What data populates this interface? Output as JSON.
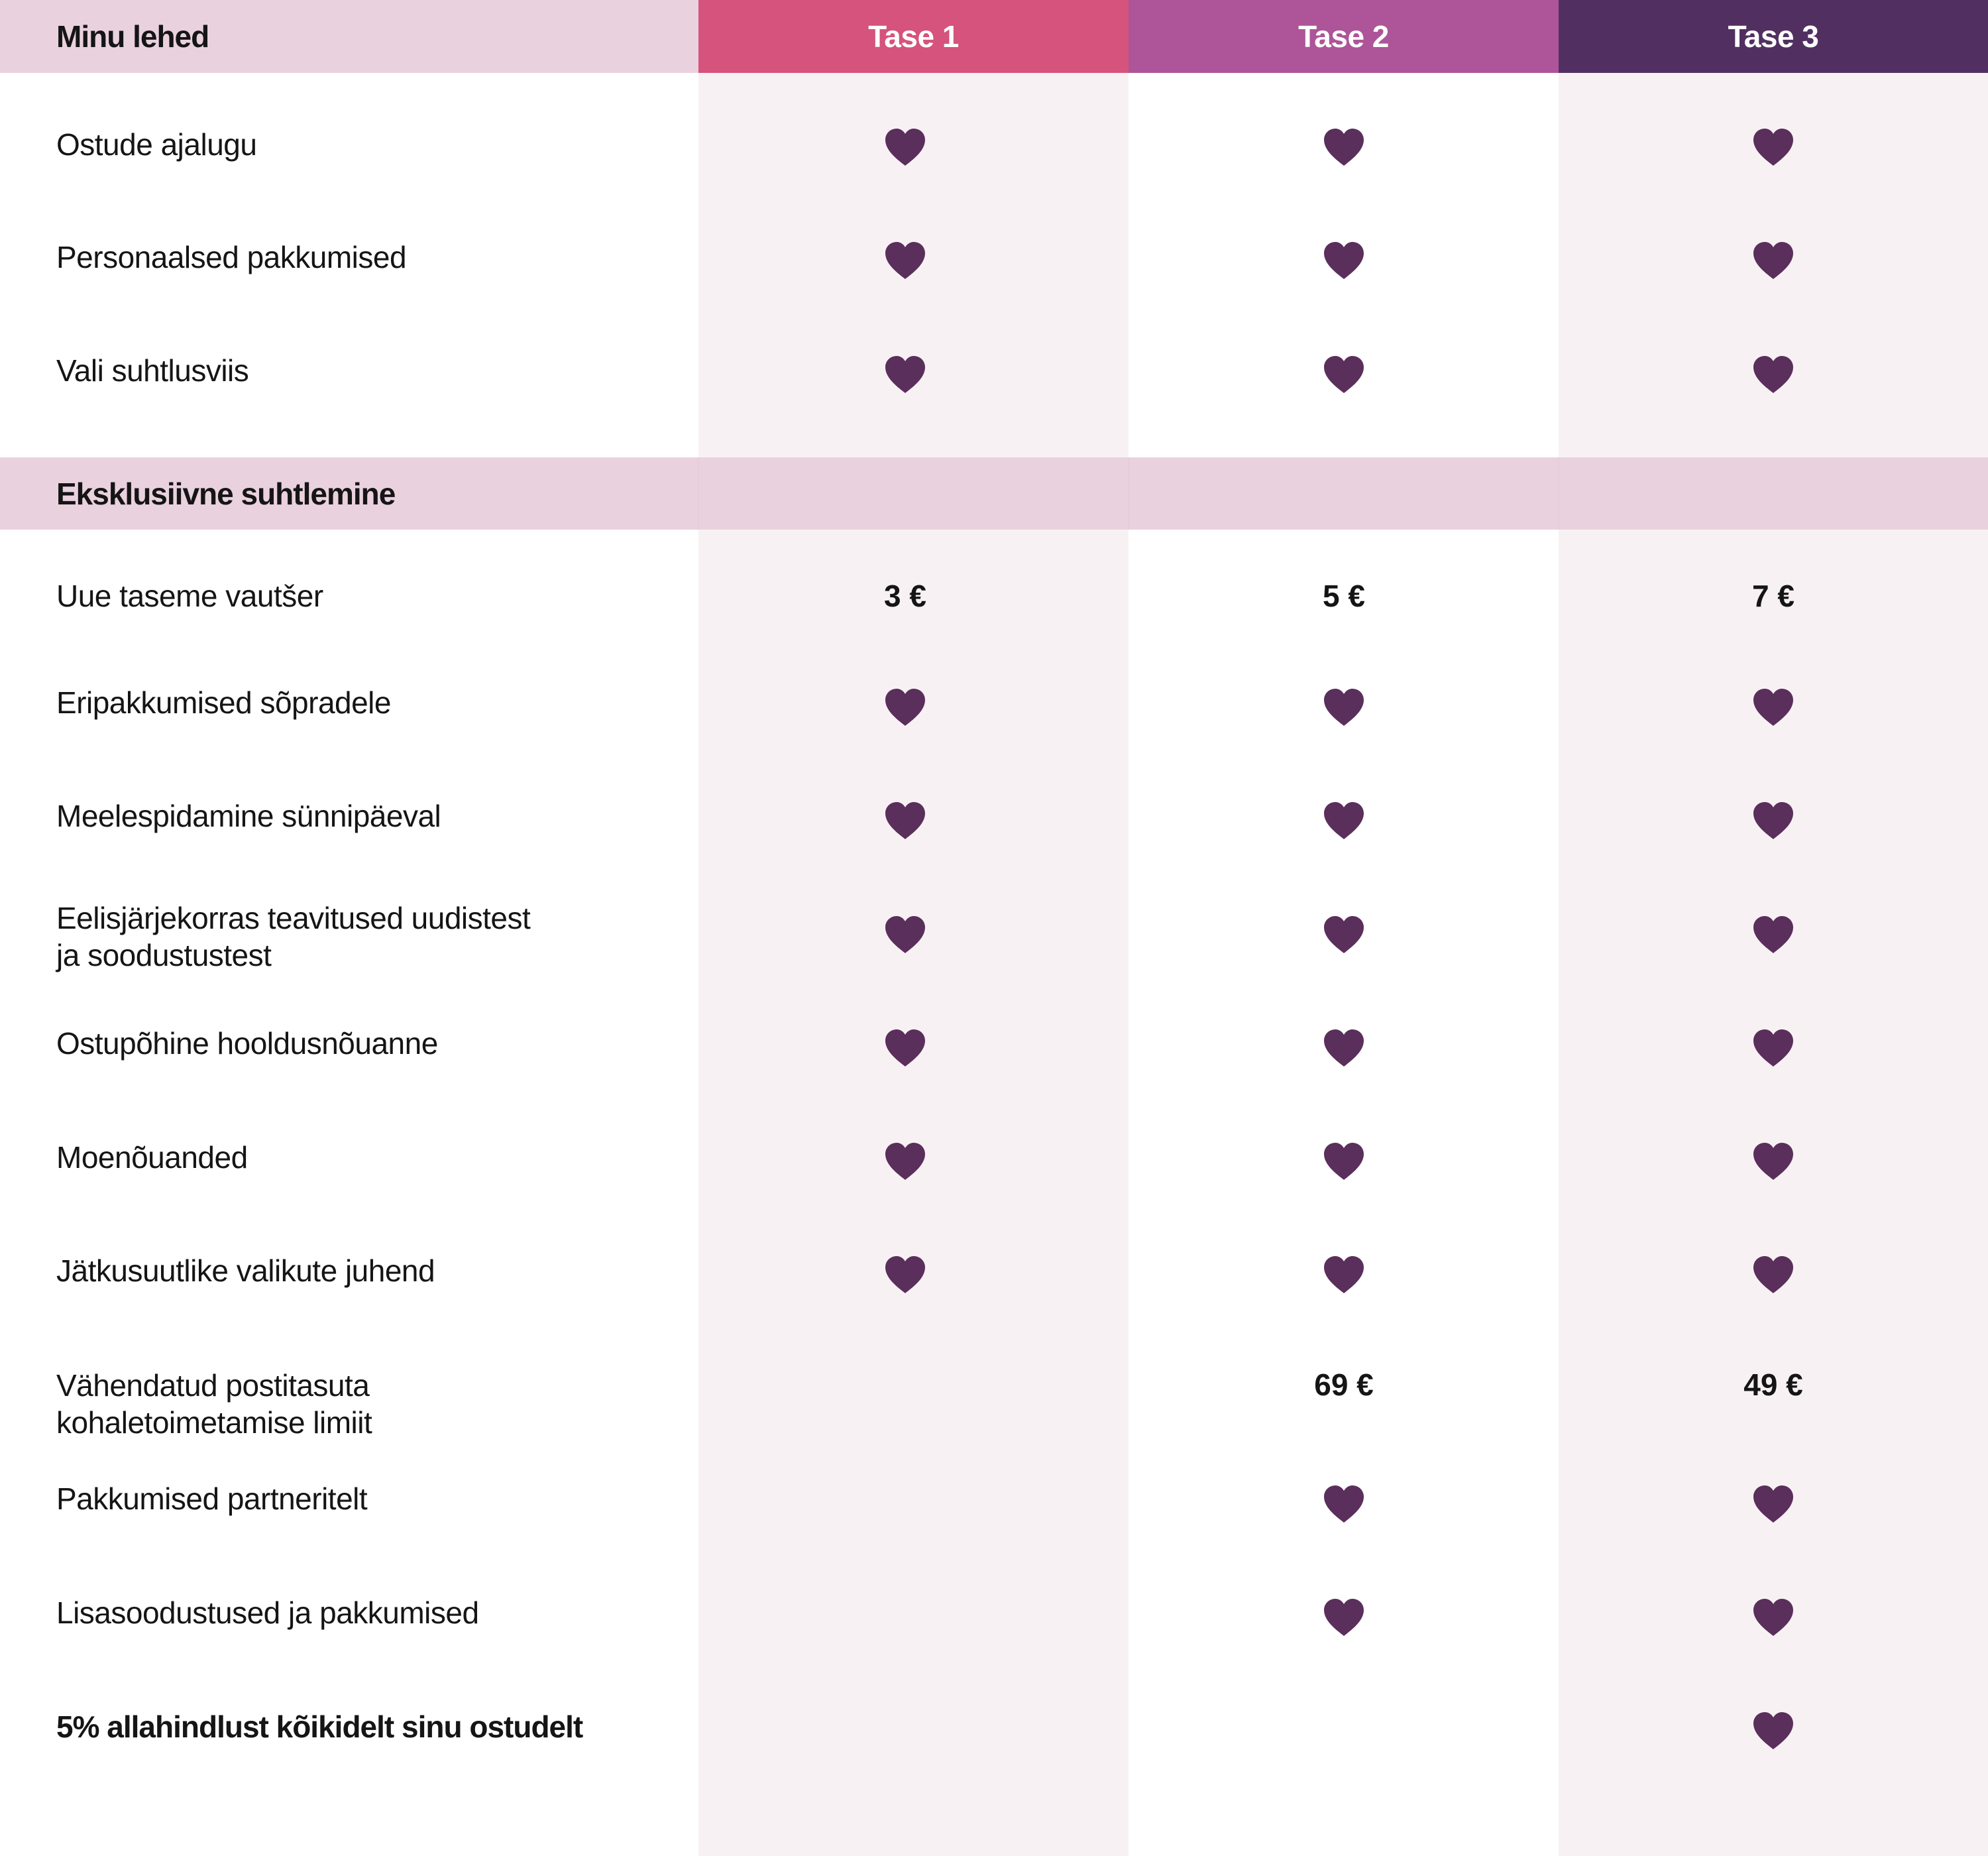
{
  "colors": {
    "tier1": "#d5537d",
    "tier2": "#ad5598",
    "tier3": "#513061",
    "header_bg": "#ead1de",
    "heart": "#5a2f5b"
  },
  "header": {
    "section_label": "Minu lehed",
    "tiers": [
      "Tase 1",
      "Tase 2",
      "Tase 3"
    ]
  },
  "section2": {
    "label": "Eksklusiivne suhtlemine"
  },
  "icon_name": "heart-icon",
  "rows": [
    {
      "label": "Ostude ajalugu",
      "t1": "heart",
      "t2": "heart",
      "t3": "heart"
    },
    {
      "label": "Personaalsed pakkumised",
      "t1": "heart",
      "t2": "heart",
      "t3": "heart"
    },
    {
      "label": "Vali suhtlusviis",
      "t1": "heart",
      "t2": "heart",
      "t3": "heart"
    },
    {
      "label": "Uue taseme vautšer",
      "t1": "3 €",
      "t2": "5 €",
      "t3": "7 €"
    },
    {
      "label": "Eripakkumised sõpradele",
      "t1": "heart",
      "t2": "heart",
      "t3": "heart"
    },
    {
      "label": "Meelespidamine sünnipäeval",
      "t1": "heart",
      "t2": "heart",
      "t3": "heart"
    },
    {
      "label": "Eelisjärjekorras teavitused uudistest\nja soodustustest",
      "t1": "heart",
      "t2": "heart",
      "t3": "heart"
    },
    {
      "label": "Ostupõhine hooldusnõuanne",
      "t1": "heart",
      "t2": "heart",
      "t3": "heart"
    },
    {
      "label": "Moenõuanded",
      "t1": "heart",
      "t2": "heart",
      "t3": "heart"
    },
    {
      "label": "Jätkusuutlike valikute juhend",
      "t1": "heart",
      "t2": "heart",
      "t3": "heart"
    },
    {
      "label": "Vähendatud postitasuta\nkohaletoimetamise limiit",
      "t1": "",
      "t2": "69 €",
      "t3": "49 €"
    },
    {
      "label": "Pakkumised partneritelt",
      "t1": "",
      "t2": "heart",
      "t3": "heart"
    },
    {
      "label": "Lisasoodustused ja pakkumised",
      "t1": "",
      "t2": "heart",
      "t3": "heart"
    },
    {
      "label": "5% allahindlust kõikidelt sinu ostudelt",
      "t1": "",
      "t2": "",
      "t3": "heart",
      "bold": true
    }
  ]
}
